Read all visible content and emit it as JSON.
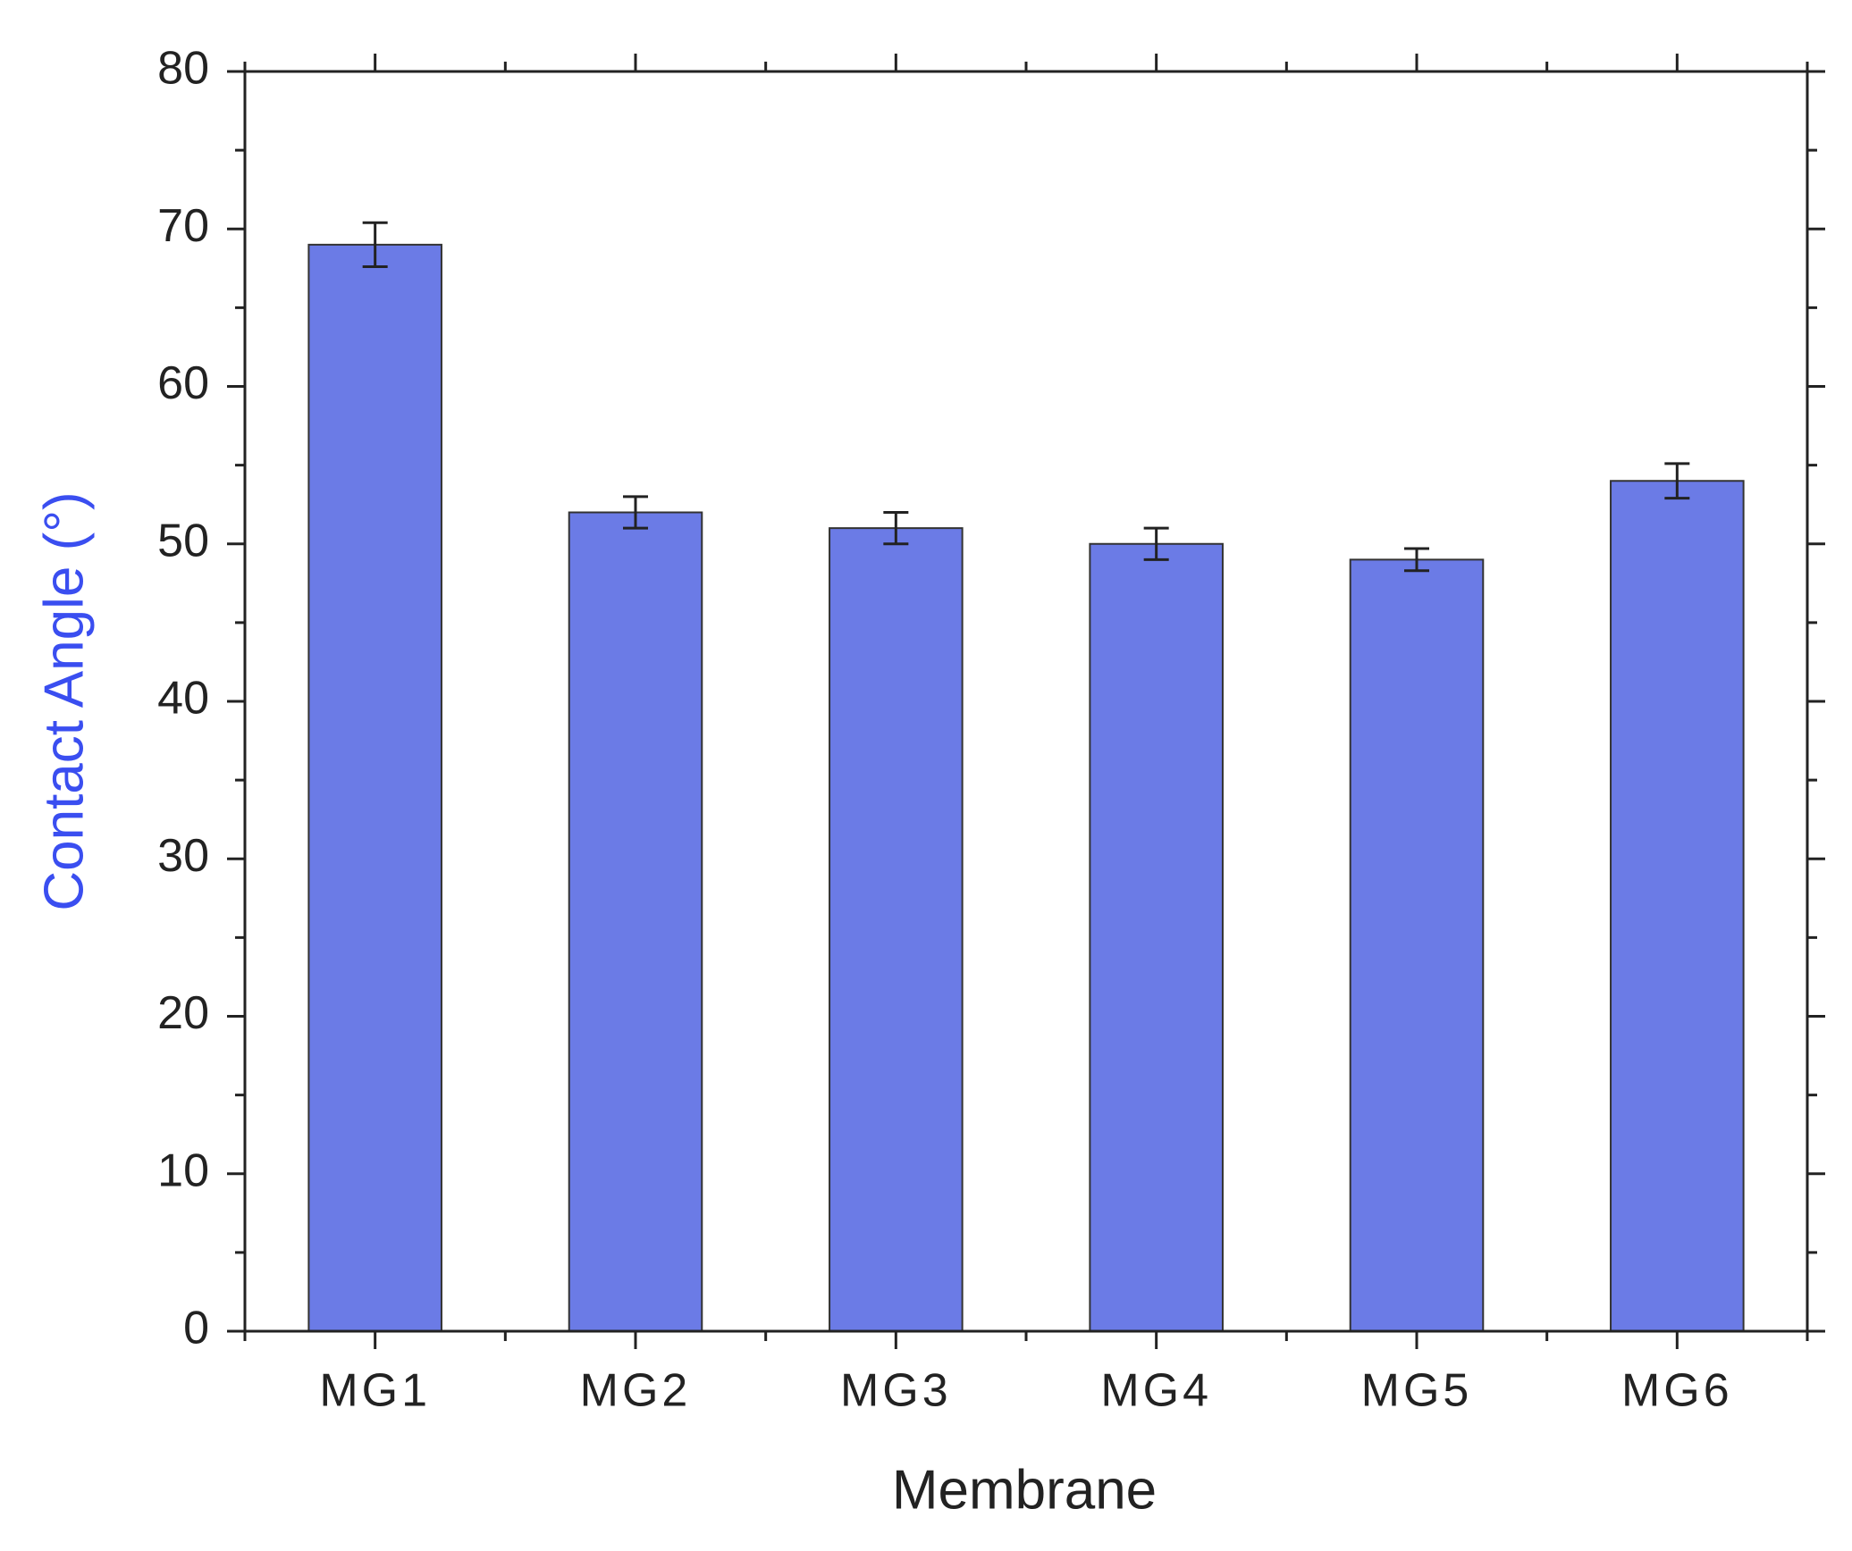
{
  "chart_data": {
    "type": "bar",
    "x_label": "Membrane",
    "y_label": "Contact Angle (°)",
    "categories": [
      "MG1",
      "MG2",
      "MG3",
      "MG4",
      "MG5",
      "MG6"
    ],
    "values": [
      69,
      52,
      51,
      50,
      49,
      54
    ],
    "errors": [
      1.4,
      1.0,
      1.0,
      1.0,
      0.7,
      1.1
    ],
    "color": "#6b7be6",
    "ylim": [
      0,
      80
    ],
    "yticks": [
      0,
      10,
      20,
      30,
      40,
      50,
      60,
      70,
      80
    ],
    "grid": false
  }
}
